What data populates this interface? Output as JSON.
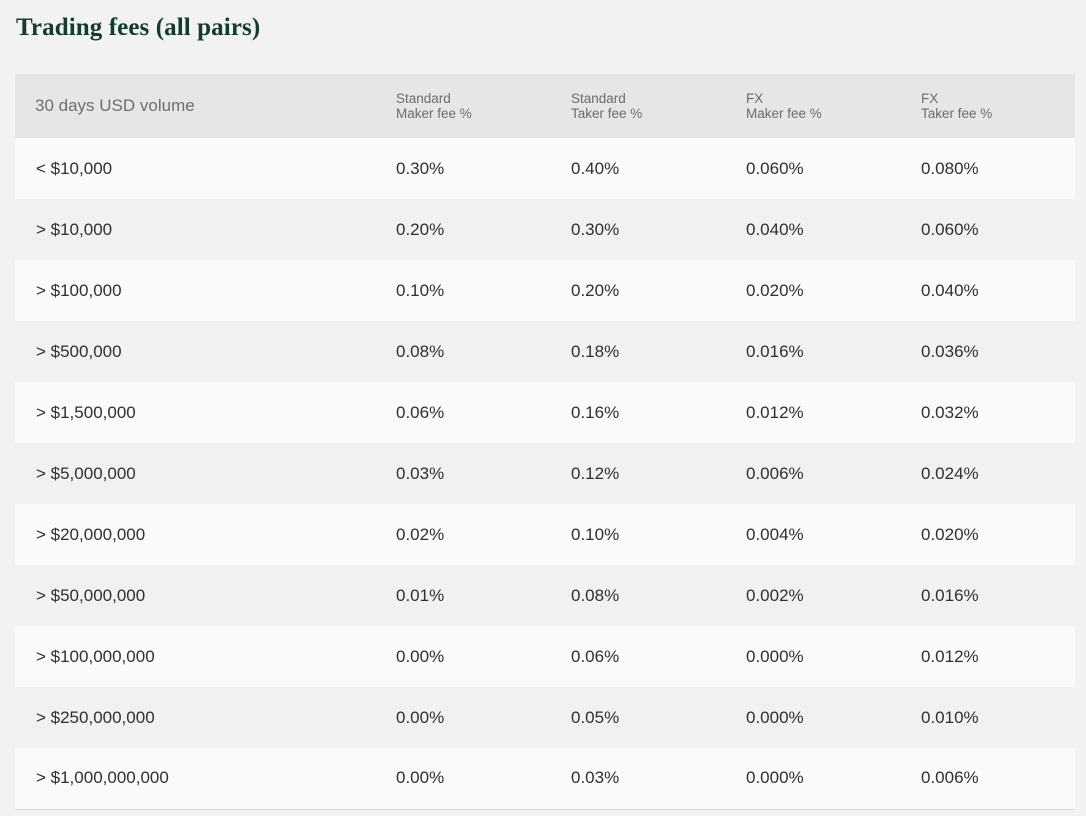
{
  "title": "Trading fees (all pairs)",
  "table": {
    "headers": {
      "volume": "30 days USD volume",
      "std_maker": [
        "Standard",
        "Maker fee %"
      ],
      "std_taker": [
        "Standard",
        "Taker fee %"
      ],
      "fx_maker": [
        "FX",
        "Maker fee %"
      ],
      "fx_taker": [
        "FX",
        "Taker fee %"
      ]
    },
    "rows": [
      {
        "volume": "< $10,000",
        "std_maker": "0.30%",
        "std_taker": "0.40%",
        "fx_maker": "0.060%",
        "fx_taker": "0.080%"
      },
      {
        "volume": "> $10,000",
        "std_maker": "0.20%",
        "std_taker": "0.30%",
        "fx_maker": "0.040%",
        "fx_taker": "0.060%"
      },
      {
        "volume": "> $100,000",
        "std_maker": "0.10%",
        "std_taker": "0.20%",
        "fx_maker": "0.020%",
        "fx_taker": "0.040%"
      },
      {
        "volume": "> $500,000",
        "std_maker": "0.08%",
        "std_taker": "0.18%",
        "fx_maker": "0.016%",
        "fx_taker": "0.036%"
      },
      {
        "volume": "> $1,500,000",
        "std_maker": "0.06%",
        "std_taker": "0.16%",
        "fx_maker": "0.012%",
        "fx_taker": "0.032%"
      },
      {
        "volume": "> $5,000,000",
        "std_maker": "0.03%",
        "std_taker": "0.12%",
        "fx_maker": "0.006%",
        "fx_taker": "0.024%"
      },
      {
        "volume": "> $20,000,000",
        "std_maker": "0.02%",
        "std_taker": "0.10%",
        "fx_maker": "0.004%",
        "fx_taker": "0.020%"
      },
      {
        "volume": "> $50,000,000",
        "std_maker": "0.01%",
        "std_taker": "0.08%",
        "fx_maker": "0.002%",
        "fx_taker": "0.016%"
      },
      {
        "volume": "> $100,000,000",
        "std_maker": "0.00%",
        "std_taker": "0.06%",
        "fx_maker": "0.000%",
        "fx_taker": "0.012%"
      },
      {
        "volume": "> $250,000,000",
        "std_maker": "0.00%",
        "std_taker": "0.05%",
        "fx_maker": "0.000%",
        "fx_taker": "0.010%"
      },
      {
        "volume": "> $1,000,000,000",
        "std_maker": "0.00%",
        "std_taker": "0.03%",
        "fx_maker": "0.000%",
        "fx_taker": "0.006%"
      }
    ]
  }
}
